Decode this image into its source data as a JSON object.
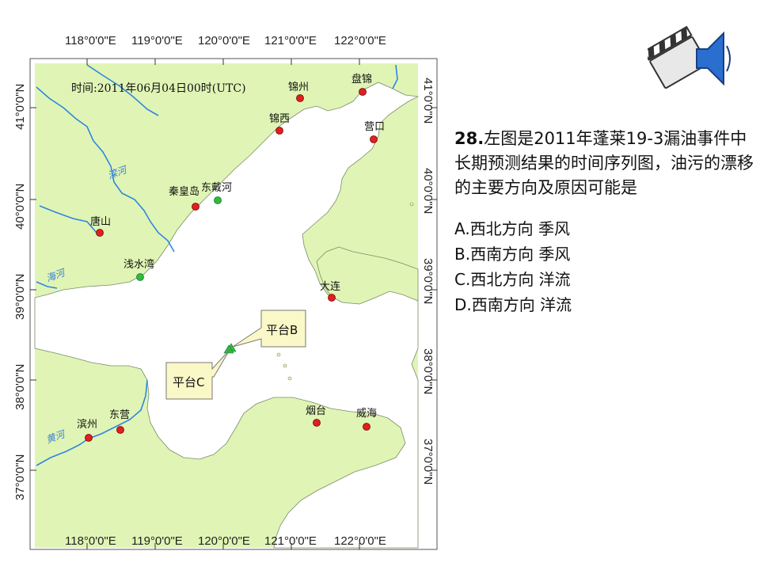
{
  "map": {
    "time_label": "时间:2011年06月04日00时(UTC)",
    "lon_ticks": [
      "118°0'0\"E",
      "119°0'0\"E",
      "120°0'0\"E",
      "121°0'0\"E",
      "122°0'0\"E"
    ],
    "lat_ticks": [
      "41°0'0\"N",
      "40°0'0\"N",
      "39°0'0\"N",
      "38°0'0\"N",
      "37°0'0\"N"
    ],
    "cities": {
      "jinzhou": "锦州",
      "panjin": "盘锦",
      "jinxi": "锦西",
      "yingkou": "营口",
      "qinhuangdao": "秦皇岛",
      "dongdaihe": "东戴河",
      "tangshan": "唐山",
      "qianshuiwan": "浅水湾",
      "dalian": "大连",
      "yantai": "烟台",
      "weihai": "威海",
      "binzhou": "滨州",
      "dongying": "东营"
    },
    "rivers": {
      "luanhe": "滦河",
      "haihe": "海河",
      "huanghe": "黄河"
    },
    "platforms": {
      "b": "平台B",
      "c": "平台C"
    },
    "colors": {
      "land": "#e0f5b5",
      "sea": "#ffffff",
      "river": "#2f86e0",
      "city": "#e02020",
      "green_marker": "#33bb33",
      "callout": "#fbf8c8"
    }
  },
  "question": {
    "number": "28.",
    "text": "左图是2011年蓬莱19-3漏油事件中长期预测结果的时间序列图，油污的漂移的主要方向及原因可能是",
    "options": [
      "A.西北方向  季风",
      "B.西南方向  季风",
      "C.西北方向  洋流",
      "D.西南方向  洋流"
    ]
  },
  "sound_icon": "speaker-clapperboard-icon"
}
